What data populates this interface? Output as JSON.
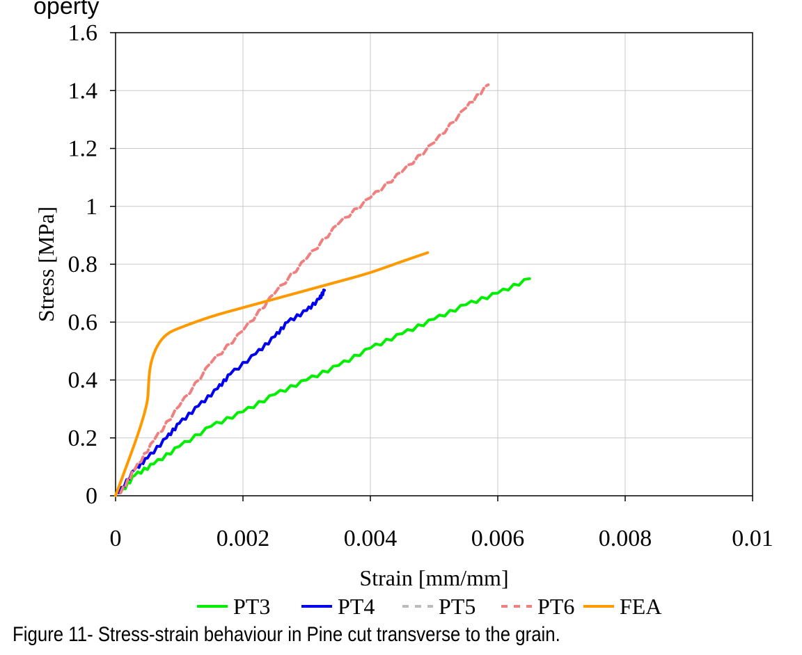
{
  "header": {
    "partial_heading": "operty"
  },
  "caption": "Figure 11- Stress-strain behaviour in Pine cut transverse to the grain.",
  "chart_data": {
    "type": "line",
    "title": "",
    "xlabel": "Strain [mm/mm]",
    "ylabel": "Stress [MPa]",
    "xlim": [
      0,
      0.01
    ],
    "ylim": [
      0,
      1.6
    ],
    "x_ticks": [
      0,
      0.002,
      0.004,
      0.006,
      0.008,
      0.01
    ],
    "x_tick_labels": [
      "0",
      "0.002",
      "0.004",
      "0.006",
      "0.008",
      "0.01"
    ],
    "y_ticks": [
      0,
      0.2,
      0.4,
      0.6,
      0.8,
      1,
      1.2,
      1.4,
      1.6
    ],
    "y_tick_labels": [
      "0",
      "0.2",
      "0.4",
      "0.6",
      "0.8",
      "1",
      "1.2",
      "1.4",
      "1.6"
    ],
    "grid": true,
    "legend_position": "bottom",
    "series": [
      {
        "name": "PT3",
        "color": "#00ee00",
        "dash": "solid",
        "x": [
          8e-05,
          0.0003,
          0.0006,
          0.001,
          0.0015,
          0.002,
          0.0025,
          0.003,
          0.0035,
          0.004,
          0.0045,
          0.005,
          0.0055,
          0.006,
          0.0065
        ],
        "y": [
          0.01,
          0.07,
          0.11,
          0.17,
          0.24,
          0.29,
          0.35,
          0.4,
          0.45,
          0.51,
          0.56,
          0.61,
          0.66,
          0.7,
          0.75
        ]
      },
      {
        "name": "PT4",
        "color": "#0000ee",
        "dash": "solid",
        "x": [
          5e-05,
          0.0003,
          0.0005,
          0.0008,
          0.001,
          0.0013,
          0.0016,
          0.0018,
          0.0022,
          0.0025,
          0.0027,
          0.003,
          0.0032,
          0.00328
        ],
        "y": [
          0.01,
          0.09,
          0.13,
          0.2,
          0.25,
          0.31,
          0.37,
          0.42,
          0.49,
          0.55,
          0.6,
          0.64,
          0.68,
          0.71
        ]
      },
      {
        "name": "PT5",
        "color": "#bbbbbb",
        "dash": "dashed",
        "x": [],
        "y": []
      },
      {
        "name": "PT6",
        "color": "#f08080",
        "dash": "dashed",
        "x": [
          8e-05,
          0.0003,
          0.0006,
          0.001,
          0.0015,
          0.002,
          0.0025,
          0.003,
          0.0035,
          0.004,
          0.0045,
          0.005,
          0.0055,
          0.00585
        ],
        "y": [
          0.01,
          0.09,
          0.19,
          0.31,
          0.46,
          0.57,
          0.7,
          0.82,
          0.94,
          1.03,
          1.12,
          1.22,
          1.34,
          1.42
        ]
      },
      {
        "name": "FEA",
        "color": "#ff9900",
        "dash": "solid",
        "x": [
          0,
          0.0005,
          0.00052,
          0.00055,
          0.00065,
          0.0008,
          0.001,
          0.0015,
          0.002,
          0.0025,
          0.003,
          0.0035,
          0.004,
          0.0045,
          0.0049
        ],
        "y": [
          0,
          0.3,
          0.4,
          0.46,
          0.52,
          0.56,
          0.58,
          0.62,
          0.65,
          0.68,
          0.71,
          0.74,
          0.77,
          0.81,
          0.84
        ]
      }
    ]
  }
}
